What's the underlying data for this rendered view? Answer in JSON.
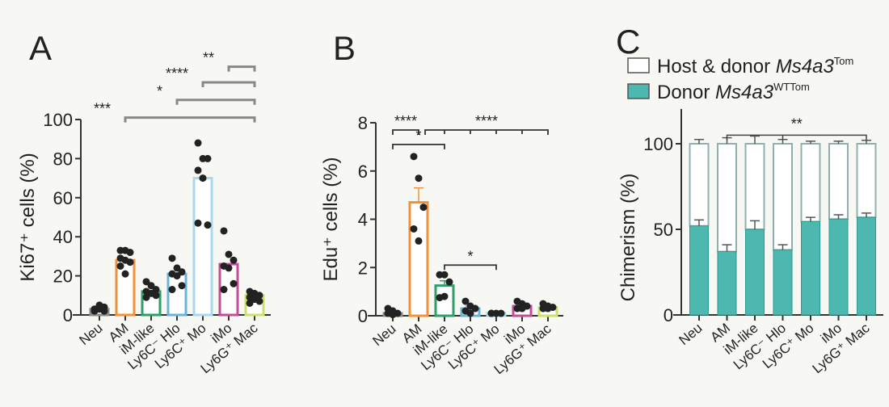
{
  "chart_data": [
    {
      "panel": "A",
      "type": "bar",
      "categories": [
        "Neu",
        "AM",
        "iM-like",
        "Ly6C⁻ Hlo",
        "Ly6C⁺ Mo",
        "iMo",
        "Ly6G⁺ Mac"
      ],
      "ylabel": "Ki67⁺ cells (%)",
      "ylim": [
        0,
        100
      ],
      "yticks": [
        0,
        20,
        40,
        60,
        80,
        100
      ],
      "values": [
        3,
        28,
        12,
        21,
        70,
        26,
        10
      ],
      "colors": [
        "#8a8a8a",
        "#f0923a",
        "#2e9e6a",
        "#6ab4d8",
        "#a8d8ee",
        "#c04f96",
        "#cfe06a"
      ],
      "points": [
        [
          2,
          3,
          4,
          3,
          5,
          2
        ],
        [
          33,
          33,
          32,
          29,
          28,
          27,
          25,
          21
        ],
        [
          17,
          15,
          13,
          12,
          11,
          10,
          9
        ],
        [
          29,
          24,
          22,
          21,
          20,
          15,
          13
        ],
        [
          88,
          80,
          80,
          74,
          70,
          46,
          47
        ],
        [
          43,
          31,
          28,
          25,
          24,
          16,
          13
        ],
        [
          12,
          11,
          10,
          9,
          8,
          7,
          6
        ]
      ],
      "significance": [
        {
          "from": 1,
          "to": 6,
          "label": "***",
          "y": 101
        },
        {
          "from": 3,
          "to": 6,
          "label": "*",
          "y": 110
        },
        {
          "from": 4,
          "to": 6,
          "label": "****",
          "y": 119
        },
        {
          "from": 5,
          "to": 6,
          "label": "**",
          "y": 127
        }
      ]
    },
    {
      "panel": "B",
      "type": "bar",
      "categories": [
        "Neu",
        "AM",
        "iM-like",
        "Ly6C⁻ Hlo",
        "Ly6C⁺ Mo",
        "iMo",
        "Ly6G⁺ Mac"
      ],
      "ylabel": "Edu⁺ cells (%)",
      "ylim": [
        0,
        8
      ],
      "yticks": [
        0,
        2,
        4,
        6,
        8
      ],
      "values": [
        0.1,
        4.7,
        1.25,
        0.3,
        0.1,
        0.4,
        0.35
      ],
      "errors": [
        0.05,
        0.6,
        0.2,
        0.1,
        0.02,
        0.1,
        0.1
      ],
      "colors": [
        "#8a8a8a",
        "#f0923a",
        "#2e9e6a",
        "#6ab4d8",
        "#a8d8ee",
        "#c04f96",
        "#cfe06a"
      ],
      "points": [
        [
          0.3,
          0.2,
          0.1,
          0.1,
          0.05
        ],
        [
          6.6,
          5.7,
          4.5,
          3.6,
          3.1
        ],
        [
          1.7,
          1.7,
          1.4,
          0.75,
          0.8
        ],
        [
          0.6,
          0.4,
          0.3,
          0.2,
          0.1
        ],
        [
          0.1,
          0.1,
          0.1,
          0.1
        ],
        [
          0.6,
          0.5,
          0.4,
          0.3,
          0.3
        ],
        [
          0.5,
          0.4,
          0.35,
          0.3,
          0.3
        ]
      ],
      "significance": [
        {
          "from": 0,
          "to": 1,
          "label": "****",
          "y": 7.7
        },
        {
          "from": 0,
          "to": 2,
          "label": "*",
          "y": 7.1
        },
        {
          "from": 1,
          "to": 6,
          "label": "****",
          "y": 7.7,
          "multi": true
        },
        {
          "from": 2,
          "to": 4,
          "label": "*",
          "y": 2.1
        }
      ]
    },
    {
      "panel": "C",
      "type": "bar",
      "stacked": true,
      "categories": [
        "Neu",
        "AM",
        "iM-like",
        "Ly6C⁻ Hlo",
        "Ly6C⁺ Mo",
        "iMo",
        "Ly6G⁺ Mac"
      ],
      "ylabel": "Chimerism (%)",
      "ylim": [
        0,
        120
      ],
      "yticks": [
        0,
        50,
        100
      ],
      "series": [
        {
          "name": "Donor Ms4a3WTTom",
          "values": [
            52,
            37,
            50,
            38,
            54.5,
            56,
            57
          ],
          "errors": [
            3.5,
            4,
            5,
            3,
            2.5,
            2.5,
            2.5
          ],
          "color": "#4db8b0"
        },
        {
          "name": "Host & donor Ms4a3Tom",
          "total": [
            100,
            100,
            100,
            100,
            100,
            100,
            100
          ],
          "errors": [
            2.5,
            3.5,
            4.5,
            2.5,
            1.5,
            1.5,
            2
          ],
          "color": "#ffffff"
        }
      ],
      "legend": [
        {
          "text": "Host & donor ",
          "italic": "Ms4a3",
          "sup": "Tom"
        },
        {
          "text": "Donor ",
          "italic": "Ms4a3",
          "sup": "WTTom"
        }
      ],
      "legend_position": "top",
      "significance": [
        {
          "from": 1,
          "to": 6,
          "label": "**",
          "y": 105,
          "mid": 3
        }
      ]
    }
  ]
}
